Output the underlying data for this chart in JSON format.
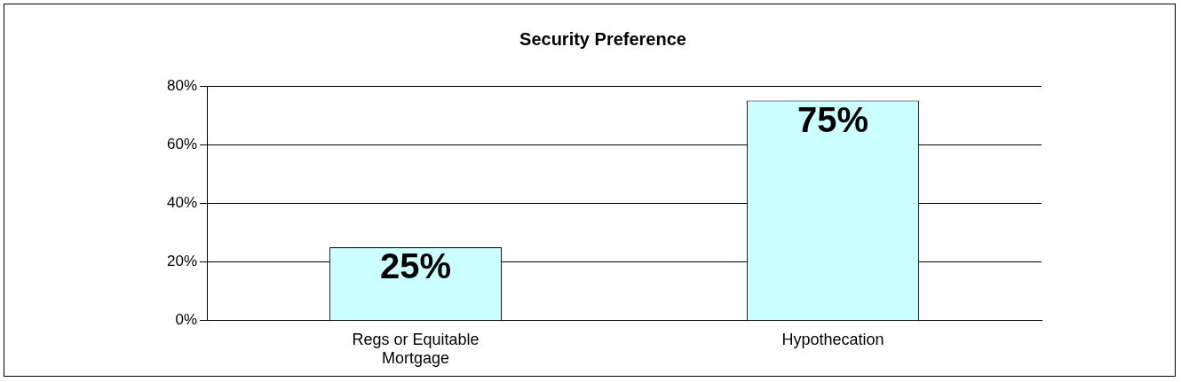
{
  "chart_data": {
    "type": "bar",
    "title": "Security Preference",
    "categories": [
      "Regs or Equitable Mortgage",
      "Hypothecation"
    ],
    "values": [
      25,
      75
    ],
    "color": "#ccffff",
    "value_labels": [
      "25%",
      "75%"
    ],
    "ylim": [
      0,
      80
    ],
    "yticks": [
      {
        "value": 0,
        "label": "0%"
      },
      {
        "value": 20,
        "label": "20%"
      },
      {
        "value": 40,
        "label": "40%"
      },
      {
        "value": 60,
        "label": "60%"
      },
      {
        "value": 80,
        "label": "80%"
      }
    ],
    "grid": "y"
  }
}
